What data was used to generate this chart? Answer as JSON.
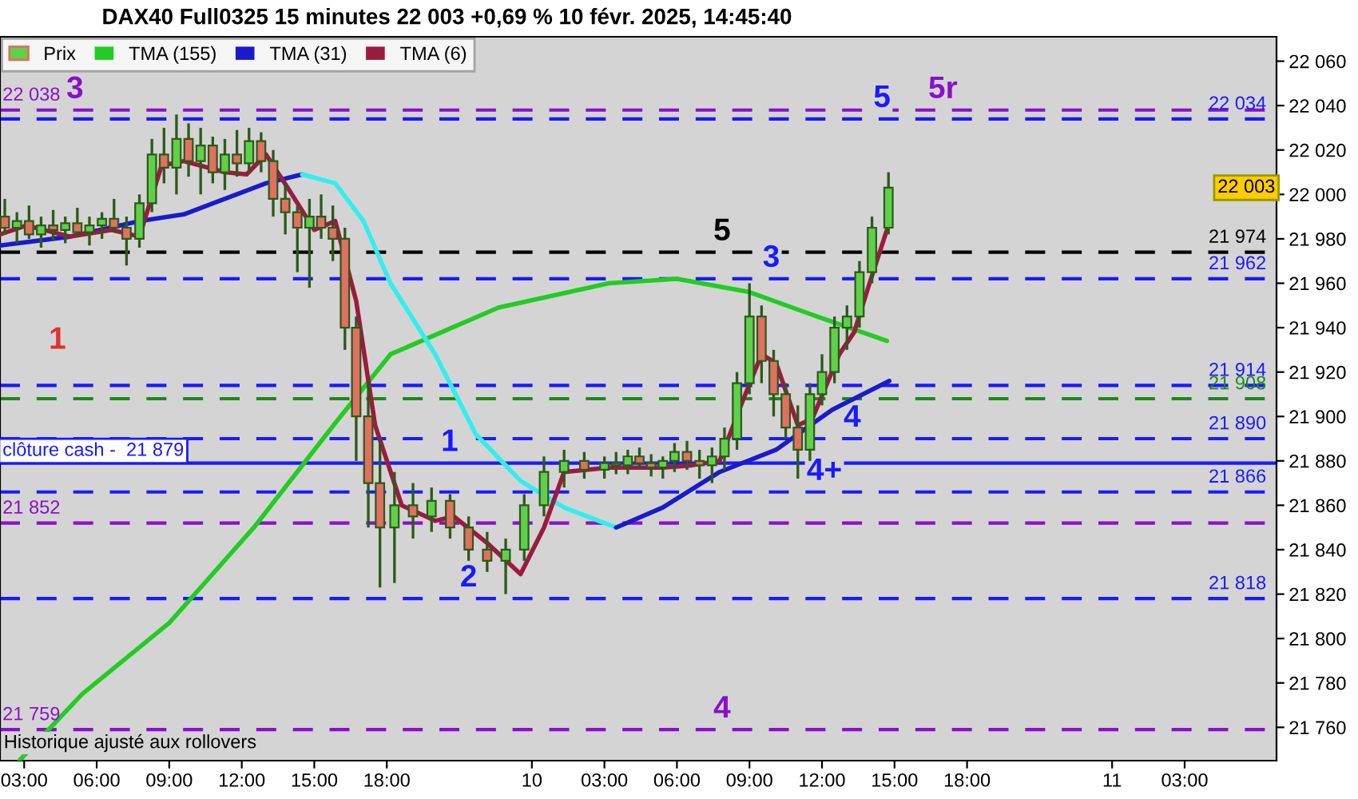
{
  "chart_data": {
    "type": "candlestick",
    "title": "DAX40 Full0325 15 minutes 22 003 +0,69 % 10 févr. 2025, 14:45:40",
    "series": [
      {
        "name": "Prix",
        "color": "#2d5a1b",
        "x": [
          "2025-02-09T02:12",
          "2025-02-09T02:42",
          "2025-02-09T03:12",
          "2025-02-09T03:42",
          "2025-02-09T04:12",
          "2025-02-09T04:42",
          "2025-02-09T05:12",
          "2025-02-09T05:42",
          "2025-02-09T06:13",
          "2025-02-09T06:43",
          "2025-02-09T07:14",
          "2025-02-09T07:46",
          "2025-02-09T08:17",
          "2025-02-09T08:47",
          "2025-02-09T09:18",
          "2025-02-09T09:48",
          "2025-02-09T10:18",
          "2025-02-09T10:48",
          "2025-02-09T11:18",
          "2025-02-09T11:48",
          "2025-02-09T12:18",
          "2025-02-09T12:48",
          "2025-02-09T13:18",
          "2025-02-09T13:48",
          "2025-02-09T14:18",
          "2025-02-09T14:48",
          "2025-02-09T15:17",
          "2025-02-09T15:46",
          "2025-02-09T16:16",
          "2025-02-09T16:44",
          "2025-02-09T17:14",
          "2025-02-09T17:43",
          "2025-02-09T18:19",
          "2025-02-09T19:05",
          "2025-02-09T19:51",
          "2025-02-09T20:37",
          "2025-02-09T21:23",
          "2025-02-09T22:09",
          "2025-02-09T22:55",
          "2025-02-09T23:41",
          "2025-02-10T00:30",
          "2025-02-10T01:20",
          "2025-02-10T02:10",
          "2025-02-10T03:00",
          "2025-02-10T03:29",
          "2025-02-10T03:58",
          "2025-02-10T04:27",
          "2025-02-10T04:56",
          "2025-02-10T05:25",
          "2025-02-10T05:54",
          "2025-02-10T06:25",
          "2025-02-10T06:56",
          "2025-02-10T07:27",
          "2025-02-10T07:58",
          "2025-02-10T08:29",
          "2025-02-10T09:00",
          "2025-02-10T09:30",
          "2025-02-10T10:00",
          "2025-02-10T10:30",
          "2025-02-10T11:00",
          "2025-02-10T11:30",
          "2025-02-10T12:00",
          "2025-02-10T12:31",
          "2025-02-10T13:02",
          "2025-02-10T13:33",
          "2025-02-10T14:04",
          "2025-02-10T14:45"
        ],
        "ohlc": [
          [
            21990,
            21998,
            21982,
            21985
          ],
          [
            21985,
            21992,
            21978,
            21988
          ],
          [
            21988,
            21995,
            21980,
            21982
          ],
          [
            21982,
            21990,
            21976,
            21986
          ],
          [
            21986,
            21993,
            21979,
            21984
          ],
          [
            21984,
            21990,
            21978,
            21987
          ],
          [
            21987,
            21994,
            21981,
            21983
          ],
          [
            21983,
            21990,
            21977,
            21986
          ],
          [
            21986,
            21992,
            21980,
            21989
          ],
          [
            21989,
            21998,
            21983,
            21985
          ],
          [
            21985,
            21990,
            21968,
            21980
          ],
          [
            21980,
            22000,
            21976,
            21996
          ],
          [
            21996,
            22025,
            21992,
            22018
          ],
          [
            22018,
            22030,
            22005,
            22012
          ],
          [
            22012,
            22036,
            22000,
            22025
          ],
          [
            22025,
            22032,
            22008,
            22015
          ],
          [
            22015,
            22030,
            22000,
            22022
          ],
          [
            22022,
            22026,
            22005,
            22010
          ],
          [
            22010,
            22025,
            22002,
            22018
          ],
          [
            22018,
            22029,
            22008,
            22014
          ],
          [
            22014,
            22030,
            22010,
            22024
          ],
          [
            22024,
            22028,
            22010,
            22015
          ],
          [
            22015,
            22020,
            21990,
            21998
          ],
          [
            21998,
            22005,
            21982,
            21992
          ],
          [
            21992,
            21995,
            21965,
            21985
          ],
          [
            21985,
            21998,
            21958,
            21990
          ],
          [
            21990,
            22000,
            21980,
            21985
          ],
          [
            21985,
            21995,
            21970,
            21980
          ],
          [
            21980,
            21985,
            21930,
            21940
          ],
          [
            21940,
            21945,
            21880,
            21900
          ],
          [
            21900,
            21915,
            21850,
            21870
          ],
          [
            21870,
            21890,
            21823,
            21850
          ],
          [
            21850,
            21875,
            21825,
            21860
          ],
          [
            21860,
            21870,
            21845,
            21855
          ],
          [
            21855,
            21868,
            21848,
            21862
          ],
          [
            21862,
            21865,
            21845,
            21850
          ],
          [
            21850,
            21855,
            21835,
            21840
          ],
          [
            21840,
            21848,
            21830,
            21835
          ],
          [
            21835,
            21845,
            21820,
            21840
          ],
          [
            21840,
            21865,
            21835,
            21860
          ],
          [
            21860,
            21882,
            21855,
            21875
          ],
          [
            21875,
            21885,
            21868,
            21880
          ],
          [
            21880,
            21884,
            21872,
            21876
          ],
          [
            21876,
            21882,
            21872,
            21879
          ],
          [
            21879,
            21884,
            21874,
            21878
          ],
          [
            21878,
            21885,
            21874,
            21882
          ],
          [
            21882,
            21886,
            21876,
            21879
          ],
          [
            21879,
            21883,
            21873,
            21877
          ],
          [
            21877,
            21882,
            21872,
            21880
          ],
          [
            21880,
            21888,
            21875,
            21884
          ],
          [
            21884,
            21889,
            21876,
            21880
          ],
          [
            21880,
            21885,
            21872,
            21878
          ],
          [
            21878,
            21886,
            21870,
            21882
          ],
          [
            21882,
            21895,
            21876,
            21890
          ],
          [
            21890,
            21920,
            21885,
            21915
          ],
          [
            21915,
            21960,
            21910,
            21945
          ],
          [
            21945,
            21950,
            21915,
            21925
          ],
          [
            21925,
            21930,
            21900,
            21910
          ],
          [
            21910,
            21915,
            21890,
            21895
          ],
          [
            21895,
            21905,
            21872,
            21885
          ],
          [
            21885,
            21915,
            21880,
            21910
          ],
          [
            21910,
            21928,
            21905,
            21920
          ],
          [
            21920,
            21945,
            21915,
            21940
          ],
          [
            21940,
            21950,
            21930,
            21945
          ],
          [
            21945,
            21970,
            21940,
            21965
          ],
          [
            21965,
            21990,
            21960,
            21985
          ],
          [
            21985,
            22010,
            21982,
            22003
          ]
        ],
        "colors": [
          "#e07060",
          "#5fd04a",
          "#e07060",
          "#5fd04a",
          "#e07060",
          "#5fd04a",
          "#e07060",
          "#5fd04a",
          "#5fd04a",
          "#e07060",
          "#e07060",
          "#5fd04a",
          "#5fd04a",
          "#e07060",
          "#5fd04a",
          "#e07060",
          "#5fd04a",
          "#e07060",
          "#5fd04a",
          "#e07060",
          "#5fd04a",
          "#e07060",
          "#e07060",
          "#e07060",
          "#e07060",
          "#5fd04a",
          "#e07060",
          "#e07060",
          "#e07060",
          "#e07060",
          "#e07060",
          "#e07060",
          "#5fd04a",
          "#e07060",
          "#5fd04a",
          "#e07060",
          "#e07060",
          "#e07060",
          "#5fd04a",
          "#5fd04a",
          "#5fd04a",
          "#5fd04a",
          "#e07060",
          "#5fd04a",
          "#e07060",
          "#5fd04a",
          "#e07060",
          "#e07060",
          "#5fd04a",
          "#5fd04a",
          "#e07060",
          "#e07060",
          "#5fd04a",
          "#5fd04a",
          "#5fd04a",
          "#5fd04a",
          "#e07060",
          "#e07060",
          "#e07060",
          "#e07060",
          "#5fd04a",
          "#5fd04a",
          "#5fd04a",
          "#5fd04a",
          "#5fd04a",
          "#5fd04a",
          "#5fd04a"
        ]
      },
      {
        "name": "TMA (155)",
        "type": "line",
        "color": "#22cc22",
        "x": [
          "2025-02-09T02:48",
          "2025-02-09T05:24",
          "2025-02-09T09:00",
          "2025-02-09T12:30",
          "2025-02-09T15:52",
          "2025-02-09T18:09",
          "2025-02-09T22:37",
          "2025-02-10T03:11",
          "2025-02-10T06:00",
          "2025-02-10T09:00",
          "2025-02-10T11:48",
          "2025-02-10T14:41"
        ],
        "values": [
          21745,
          21775,
          21807,
          21850,
          21897,
          21928,
          21949,
          21960,
          21962,
          21956,
          21945,
          21934
        ]
      },
      {
        "name": "TMA (31)",
        "type": "line",
        "color": "#1a1acc",
        "x": [
          "2025-02-09T02:00",
          "2025-02-09T04:54",
          "2025-02-09T07:46",
          "2025-02-09T09:36",
          "2025-02-09T11:18",
          "2025-02-09T13:00",
          "2025-02-09T14:30"
        ],
        "values": [
          21977,
          21981,
          21988,
          21991,
          21998,
          22005,
          22009
        ]
      },
      {
        "type": "line",
        "color": "#33eeee",
        "x": [
          "2025-02-09T14:30",
          "2025-02-09T15:52",
          "2025-02-09T17:02",
          "2025-02-09T18:09",
          "2025-02-09T20:00",
          "2025-02-09T21:41",
          "2025-02-09T23:32",
          "2025-02-10T01:20",
          "2025-02-10T03:29"
        ],
        "values": [
          22009,
          22005,
          21988,
          21960,
          21928,
          21892,
          21871,
          21859,
          21850
        ]
      },
      {
        "type": "line",
        "color": "#1a1acc",
        "x": [
          "2025-02-10T03:29",
          "2025-02-10T05:25",
          "2025-02-10T07:46",
          "2025-02-10T10:06",
          "2025-02-10T12:25",
          "2025-02-10T14:47"
        ],
        "values": [
          21850,
          21859,
          21875,
          21885,
          21903,
          21916
        ]
      },
      {
        "name": "TMA (6)",
        "type": "line",
        "color": "#9b1b3f",
        "x": [
          "2025-02-09T02:00",
          "2025-02-09T03:06",
          "2025-02-09T04:54",
          "2025-02-09T06:37",
          "2025-02-09T07:46",
          "2025-02-09T08:41",
          "2025-02-09T09:36",
          "2025-02-09T11:18",
          "2025-02-09T12:12",
          "2025-02-09T13:00",
          "2025-02-09T13:54",
          "2025-02-09T15:00",
          "2025-02-09T15:52",
          "2025-02-09T16:44",
          "2025-02-09T17:31",
          "2025-02-09T18:37",
          "2025-02-09T20:00",
          "2025-02-09T20:46",
          "2025-02-09T22:09",
          "2025-02-09T23:32",
          "2025-02-10T00:30",
          "2025-02-10T01:20",
          "2025-02-10T03:11",
          "2025-02-10T05:25",
          "2025-02-10T06:37",
          "2025-02-10T07:46",
          "2025-02-10T08:41",
          "2025-02-10T09:30",
          "2025-02-10T10:06",
          "2025-02-10T11:00",
          "2025-02-10T11:36",
          "2025-02-10T12:43",
          "2025-02-10T13:20",
          "2025-02-10T13:58",
          "2025-02-10T14:41"
        ],
        "values": [
          21982,
          21986,
          21981,
          21984,
          21981,
          22013,
          22015,
          22010,
          22009,
          22018,
          22003,
          21984,
          21988,
          21952,
          21896,
          21860,
          21853,
          21855,
          21843,
          21829,
          21850,
          21875,
          21877,
          21877,
          21878,
          21880,
          21906,
          21928,
          21924,
          21896,
          21899,
          21928,
          21938,
          21960,
          21984
        ]
      }
    ],
    "xlim": [
      "2025-02-09T02:00",
      "2025-02-11T06:48"
    ],
    "xticks": [
      {
        "value": "2025-02-09T03:00",
        "label": "03:00"
      },
      {
        "value": "2025-02-09T06:00",
        "label": "06:00"
      },
      {
        "value": "2025-02-09T09:00",
        "label": "09:00"
      },
      {
        "value": "2025-02-09T12:00",
        "label": "12:00"
      },
      {
        "value": "2025-02-09T15:00",
        "label": "15:00"
      },
      {
        "value": "2025-02-09T18:00",
        "label": "18:00"
      },
      {
        "value": "2025-02-10T00:00",
        "label": "10"
      },
      {
        "value": "2025-02-10T03:00",
        "label": "03:00"
      },
      {
        "value": "2025-02-10T06:00",
        "label": "06:00"
      },
      {
        "value": "2025-02-10T09:00",
        "label": "09:00"
      },
      {
        "value": "2025-02-10T12:00",
        "label": "12:00"
      },
      {
        "value": "2025-02-10T15:00",
        "label": "15:00"
      },
      {
        "value": "2025-02-10T18:00",
        "label": "18:00"
      },
      {
        "value": "2025-02-11T00:00",
        "label": "11"
      },
      {
        "value": "2025-02-11T03:00",
        "label": "03:00"
      }
    ],
    "ylim": [
      21745,
      22071
    ],
    "yticks": [
      {
        "value": 21760,
        "label": "21 760"
      },
      {
        "value": 21780,
        "label": "21 780"
      },
      {
        "value": 21800,
        "label": "21 800"
      },
      {
        "value": 21820,
        "label": "21 820"
      },
      {
        "value": 21840,
        "label": "21 840"
      },
      {
        "value": 21860,
        "label": "21 860"
      },
      {
        "value": 21880,
        "label": "21 880"
      },
      {
        "value": 21900,
        "label": "21 900"
      },
      {
        "value": 21920,
        "label": "21 920"
      },
      {
        "value": 21940,
        "label": "21 940"
      },
      {
        "value": 21960,
        "label": "21 960"
      },
      {
        "value": 21980,
        "label": "21 980"
      },
      {
        "value": 22000,
        "label": "22 000"
      },
      {
        "value": 22020,
        "label": "22 020"
      },
      {
        "value": 22040,
        "label": "22 040"
      },
      {
        "value": 22060,
        "label": "22 060"
      }
    ],
    "ref_lines": [
      {
        "axis": "y",
        "value": 22038,
        "label": "22 038",
        "color": "#8a10c8",
        "line_style": "dashed"
      },
      {
        "axis": "y",
        "value": 21852,
        "label": "21 852",
        "color": "#8a10c8",
        "line_style": "dashed"
      },
      {
        "axis": "y",
        "value": 21759,
        "label": "21 759",
        "color": "#8a10c8",
        "line_style": "dashed"
      },
      {
        "axis": "y",
        "value": 22034,
        "label": "22 034",
        "color": "#1a1aff",
        "line_style": "dashed"
      },
      {
        "axis": "y",
        "value": 21962,
        "label": "21 962",
        "color": "#1a1aff",
        "line_style": "dashed"
      },
      {
        "axis": "y",
        "value": 21914,
        "label": "21 914",
        "color": "#1a1aff",
        "line_style": "dashed"
      },
      {
        "axis": "y",
        "value": 21890,
        "label": "21 890",
        "color": "#1a1aff",
        "line_style": "dashed"
      },
      {
        "axis": "y",
        "value": 21866,
        "label": "21 866",
        "color": "#1a1aff",
        "line_style": "dashed"
      },
      {
        "axis": "y",
        "value": 21818,
        "label": "21 818",
        "color": "#1a1aff",
        "line_style": "dashed"
      },
      {
        "axis": "y",
        "value": 21974,
        "label": "21 974",
        "color": "#000000",
        "line_style": "dashed"
      },
      {
        "axis": "y",
        "value": 21908,
        "label": "21 908",
        "color": "#1a8a1a",
        "line_style": "dashed"
      },
      {
        "axis": "y",
        "value": 21879,
        "label": "clôture cash -  21 879",
        "color": "#1a1aff",
        "line_style": "solid"
      }
    ],
    "annotations": [
      {
        "text": "3",
        "x": "2025-02-09T05:06",
        "y": 22038
      },
      "1",
      {
        "text": "1",
        "x": "2025-02-09T20:36",
        "y": 21879
      },
      {
        "text": "2",
        "x": "2025-02-09T21:23",
        "y": 21818
      },
      {
        "text": "5",
        "x": "2025-02-10T07:52",
        "y": 21974
      },
      {
        "text": "3",
        "x": "2025-02-10T09:54",
        "y": 21962
      },
      {
        "text": "4",
        "x": "2025-02-10T13:15",
        "y": 21890
      },
      {
        "text": "4+",
        "x": "2025-02-10T12:06",
        "y": 21866
      },
      {
        "text": "5",
        "x": "2025-02-10T14:29",
        "y": 22034
      },
      {
        "text": "5r",
        "x": "2025-02-10T17:00",
        "y": 22038
      },
      {
        "text": "4",
        "x": "2025-02-10T07:52",
        "y": 21759
      },
      {
        "text": "22 003",
        "y": 22003
      },
      "Historique ajusté aux rollovers"
    ],
    "legend": "top left",
    "grid": false
  }
}
